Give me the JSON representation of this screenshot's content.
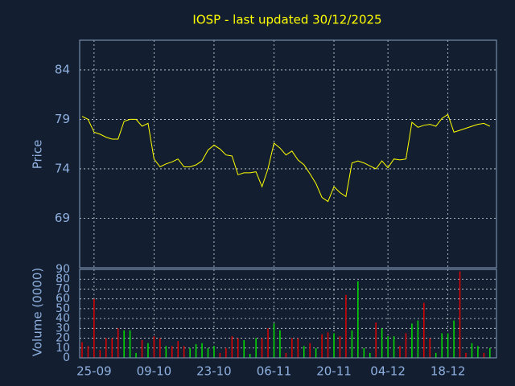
{
  "chart_data": {
    "type": "stock",
    "title": "IOSP - last updated 30/12/2025",
    "y_label": "Price",
    "y2_label": "Volume (0000)",
    "categories": [
      null,
      null,
      "25-09",
      null,
      null,
      null,
      null,
      null,
      null,
      null,
      null,
      null,
      "09-10",
      null,
      null,
      null,
      null,
      null,
      null,
      null,
      null,
      null,
      "23-10",
      null,
      null,
      null,
      null,
      null,
      null,
      null,
      null,
      null,
      "06-11",
      null,
      null,
      null,
      null,
      null,
      null,
      null,
      null,
      null,
      "20-11",
      null,
      null,
      null,
      null,
      null,
      null,
      null,
      null,
      "04-12",
      null,
      null,
      null,
      null,
      null,
      null,
      null,
      null,
      null,
      "18-12",
      null,
      null,
      null,
      null,
      null,
      null,
      null
    ],
    "values": [
      79.3,
      79.0,
      77.7,
      77.5,
      77.2,
      77.0,
      77.0,
      78.8,
      79.0,
      79.0,
      78.3,
      78.6,
      75.0,
      74.2,
      74.5,
      74.7,
      75.0,
      74.2,
      74.2,
      74.4,
      74.8,
      75.9,
      76.4,
      76.0,
      75.4,
      75.3,
      73.4,
      73.6,
      73.6,
      73.7,
      72.2,
      74.0,
      76.6,
      76.1,
      75.4,
      75.8,
      74.9,
      74.4,
      73.5,
      72.5,
      71.1,
      70.7,
      72.2,
      71.6,
      71.2,
      74.6,
      74.8,
      74.6,
      74.3,
      74.0,
      74.8,
      74.1,
      75.0,
      74.9,
      75.0,
      78.7,
      78.2,
      78.4,
      78.5,
      78.3,
      79.1,
      79.5,
      77.7,
      77.9,
      78.1,
      78.3,
      78.5,
      78.6,
      78.3
    ],
    "color": "#ffff00",
    "ylim": [
      64,
      87
    ],
    "yticks": [
      69,
      74,
      79,
      84
    ],
    "volume": [
      16,
      12,
      60,
      8,
      20,
      20,
      30,
      28,
      28,
      5,
      18,
      15,
      22,
      20,
      12,
      12,
      17,
      12,
      10,
      14,
      15,
      10,
      12,
      5,
      10,
      22,
      20,
      18,
      4,
      20,
      20,
      30,
      35,
      28,
      5,
      20,
      20,
      12,
      15,
      10,
      24,
      26,
      25,
      22,
      64,
      28,
      78,
      10,
      5,
      36,
      30,
      22,
      22,
      12,
      25,
      35,
      38,
      56,
      20,
      5,
      25,
      25,
      38,
      88,
      5,
      15,
      12,
      5,
      10
    ],
    "volume_colors": [
      "#e00000",
      "#e00000",
      "#e00000",
      "#e00000",
      "#e00000",
      "#e00000",
      "#e00000",
      "#00e000",
      "#00e000",
      "#00e000",
      "#e00000",
      "#00e000",
      "#e00000",
      "#e00000",
      "#00e000",
      "#e00000",
      "#e00000",
      "#e00000",
      "#00e000",
      "#00e000",
      "#00e000",
      "#00e000",
      "#00e000",
      "#e00000",
      "#e00000",
      "#e00000",
      "#e00000",
      "#00e000",
      "#00e000",
      "#00e000",
      "#e00000",
      "#e00000",
      "#00e000",
      "#00e000",
      "#e00000",
      "#e00000",
      "#e00000",
      "#00e000",
      "#e00000",
      "#00e000",
      "#e00000",
      "#e00000",
      "#00e000",
      "#e00000",
      "#e00000",
      "#00e000",
      "#00e000",
      "#00e000",
      "#00e000",
      "#e00000",
      "#00e000",
      "#00e000",
      "#00e000",
      "#e00000",
      "#e00000",
      "#00e000",
      "#00e000",
      "#e00000",
      "#e00000",
      "#00e000",
      "#00e000",
      "#00e000",
      "#00e000",
      "#e00000",
      "#e00000",
      "#00e000",
      "#00e000",
      "#e00000",
      "#00e000"
    ],
    "y2lim": [
      0,
      90
    ],
    "y2ticks": [
      0,
      10,
      20,
      30,
      40,
      50,
      60,
      70,
      80,
      90
    ],
    "grid": true
  }
}
